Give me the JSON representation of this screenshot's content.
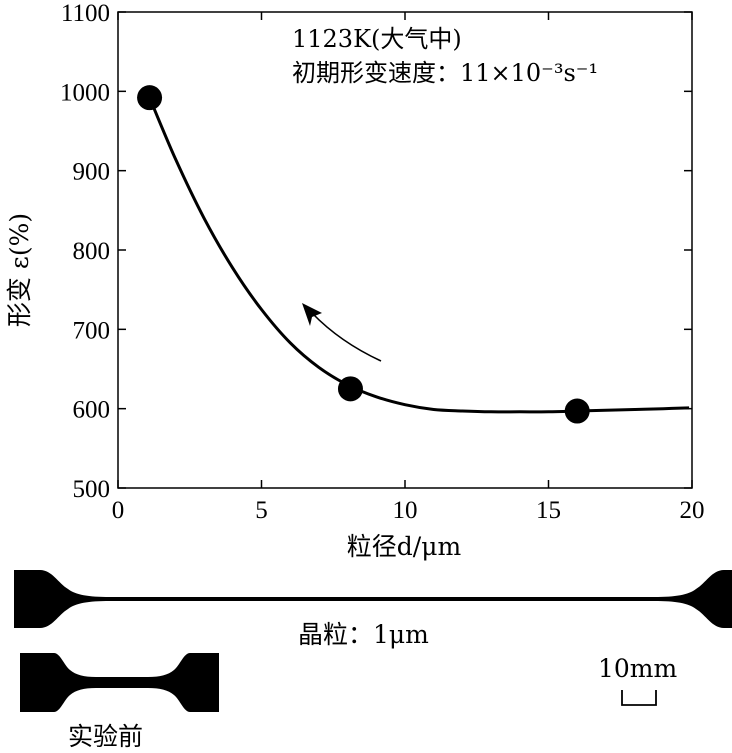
{
  "chart_data": {
    "type": "line",
    "xlabel": "粒径d/μm",
    "ylabel": "形变 ε(%)",
    "xlim": [
      0,
      20
    ],
    "ylim": [
      500,
      1100
    ],
    "xticks": [
      0,
      5,
      10,
      15,
      20
    ],
    "yticks": [
      500,
      600,
      700,
      800,
      900,
      1000,
      1100
    ],
    "annotation_lines": [
      "1123K(大气中)",
      "初期形变速度：11×10⁻³s⁻¹"
    ],
    "points": [
      {
        "x": 1.1,
        "y": 992
      },
      {
        "x": 8.1,
        "y": 625
      },
      {
        "x": 16.0,
        "y": 597
      }
    ],
    "curve": [
      {
        "x": 1.1,
        "y": 992
      },
      {
        "x": 2.0,
        "y": 915
      },
      {
        "x": 3.0,
        "y": 840
      },
      {
        "x": 4.0,
        "y": 777
      },
      {
        "x": 5.0,
        "y": 725
      },
      {
        "x": 6.0,
        "y": 683
      },
      {
        "x": 7.0,
        "y": 652
      },
      {
        "x": 8.0,
        "y": 630
      },
      {
        "x": 9.0,
        "y": 615
      },
      {
        "x": 10.0,
        "y": 605
      },
      {
        "x": 11.0,
        "y": 599
      },
      {
        "x": 12.0,
        "y": 597
      },
      {
        "x": 13.0,
        "y": 596
      },
      {
        "x": 14.0,
        "y": 596
      },
      {
        "x": 15.0,
        "y": 596
      },
      {
        "x": 16.0,
        "y": 597
      },
      {
        "x": 17.0,
        "y": 598
      },
      {
        "x": 18.0,
        "y": 599
      },
      {
        "x": 19.0,
        "y": 600
      },
      {
        "x": 19.9,
        "y": 601
      }
    ],
    "grid": false
  },
  "specimens": {
    "after_label": "晶粒：1μm",
    "before_label": "实验前",
    "scale_label": "10mm"
  }
}
